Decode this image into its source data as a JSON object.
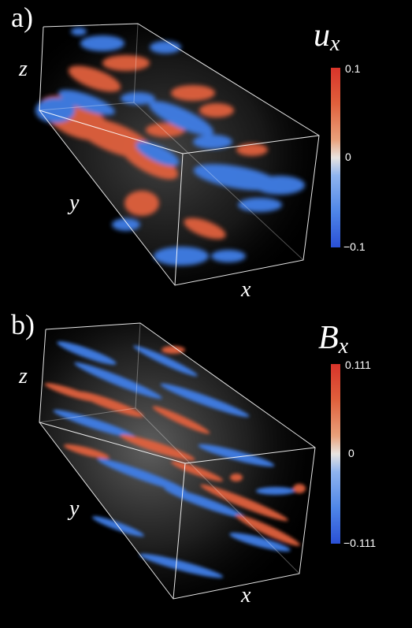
{
  "panel_a": {
    "label": "a)",
    "quantity_symbol": "u",
    "quantity_subscript": "x",
    "axes": {
      "x": "x",
      "y": "y",
      "z": "z"
    },
    "colorbar": {
      "max": "0.1",
      "mid": "0",
      "min": "−0.1"
    }
  },
  "panel_b": {
    "label": "b)",
    "quantity_symbol": "B",
    "quantity_subscript": "x",
    "axes": {
      "x": "x",
      "y": "y",
      "z": "z"
    },
    "colorbar": {
      "max": "0.111",
      "mid": "0",
      "min": "−0.111"
    }
  },
  "colors": {
    "positive": "#e0603c",
    "negative": "#3f7ee6",
    "background": "#000000",
    "box_edges": "#ffffff"
  }
}
